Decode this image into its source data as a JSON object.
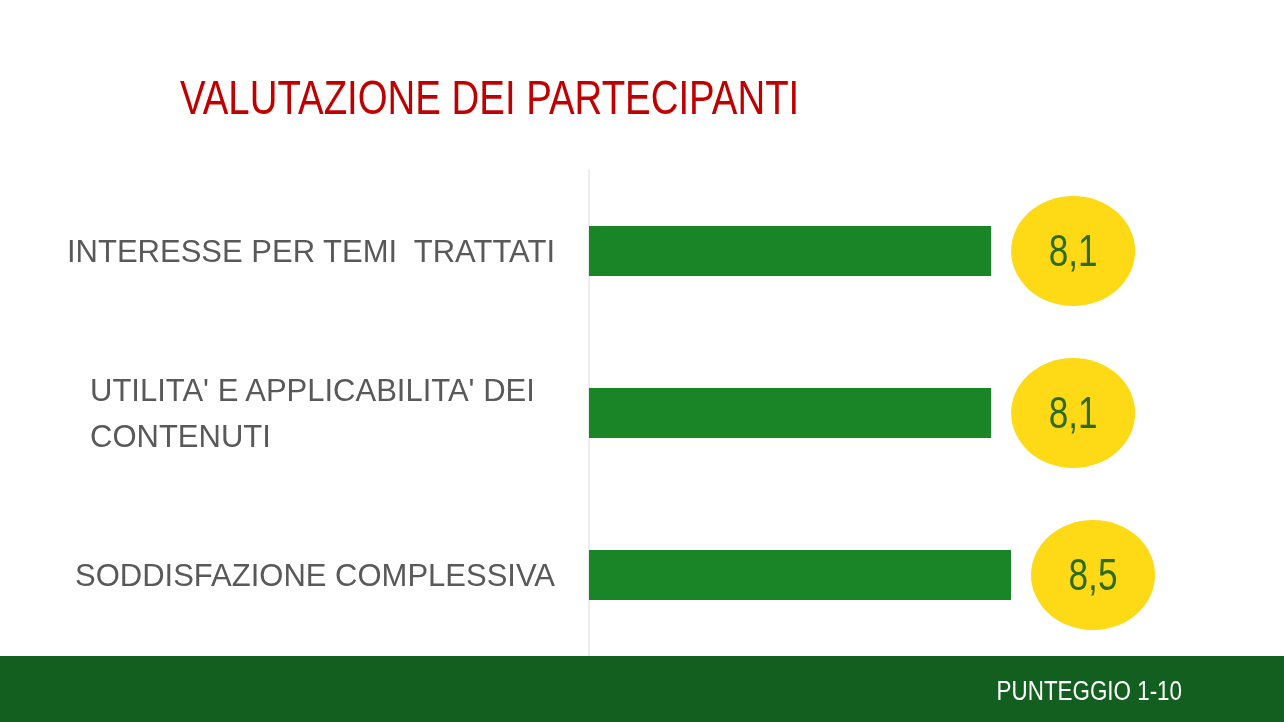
{
  "chart_data": {
    "type": "bar",
    "orientation": "horizontal",
    "title": "VALUTAZIONE DEI PARTECIPANTI",
    "categories": [
      "INTERESSE PER TEMI  TRATTATI",
      "UTILITA' E APPLICABILITA' DEI CONTENUTI",
      "SODDISFAZIONE COMPLESSIVA"
    ],
    "values": [
      8.1,
      8.1,
      8.5
    ],
    "value_labels": [
      "8,1",
      "8,1",
      "8,5"
    ],
    "color": "#1a8526",
    "annotations": [
      "PUNTEGGIO 1-10"
    ]
  }
}
